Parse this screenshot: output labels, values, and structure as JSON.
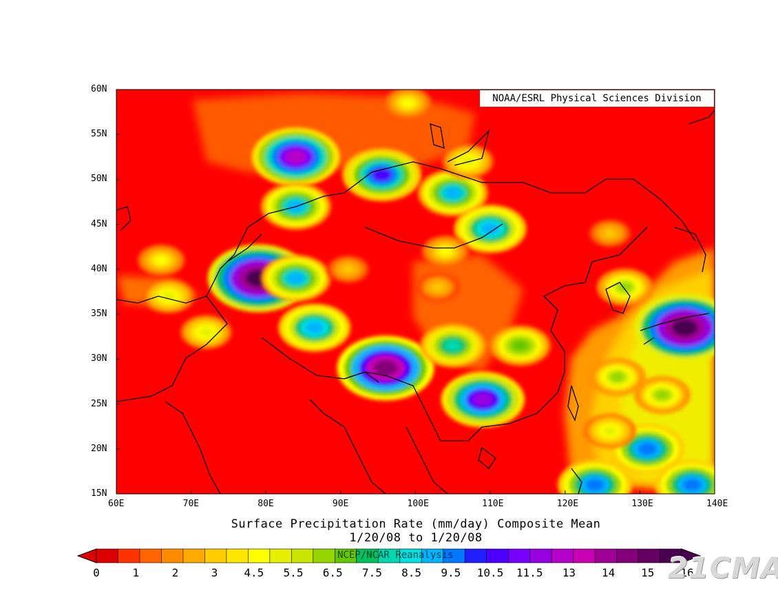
{
  "map": {
    "credit": "NOAA/ESRL Physical Sciences Division",
    "title_line1": "Surface Precipitation Rate (mm/day) Composite Mean",
    "title_line2": "1/20/08  to 1/20/08",
    "source_note": "NCEP/NCAR Reanalysis",
    "watermark": "21CMA",
    "lon_labels": [
      "60E",
      "70E",
      "80E",
      "90E",
      "100E",
      "110E",
      "120E",
      "130E",
      "140E"
    ],
    "lat_labels": [
      "60N",
      "55N",
      "50N",
      "45N",
      "40N",
      "35N",
      "30N",
      "25N",
      "20N",
      "15N"
    ],
    "lon_range": [
      60,
      140
    ],
    "lat_range": [
      15,
      60
    ],
    "background_color": "#ff0000",
    "colorbar": {
      "labels": [
        "0",
        "1",
        "2",
        "3",
        "4.5",
        "5.5",
        "6.5",
        "7.5",
        "8.5",
        "9.5",
        "10.5",
        "11.5",
        "13",
        "14",
        "15",
        "16"
      ],
      "colors": [
        "#dd0000",
        "#ff3300",
        "#ff6600",
        "#ff8c00",
        "#ffaa00",
        "#ffcc00",
        "#ffe600",
        "#ffff00",
        "#e6f000",
        "#c8e600",
        "#96d600",
        "#64c800",
        "#00c060",
        "#00d8b0",
        "#00e0e0",
        "#00b4ff",
        "#0078ff",
        "#1e1eff",
        "#4c00ff",
        "#7800ff",
        "#9600e0",
        "#b400c8",
        "#c800b4",
        "#a00096",
        "#820078",
        "#640064",
        "#4a0050"
      ]
    },
    "precip_blobs": [
      {
        "lon": 84,
        "lat": 52.5,
        "value": 13
      },
      {
        "lon": 95.5,
        "lat": 50.5,
        "value": 11
      },
      {
        "lon": 105,
        "lat": 48.5,
        "value": 9
      },
      {
        "lon": 84,
        "lat": 47,
        "value": 9
      },
      {
        "lon": 110,
        "lat": 44.5,
        "value": 9.5
      },
      {
        "lon": 79,
        "lat": 39,
        "value": 16
      },
      {
        "lon": 84,
        "lat": 39,
        "value": 9
      },
      {
        "lon": 86.5,
        "lat": 33.5,
        "value": 9.5
      },
      {
        "lon": 96,
        "lat": 29,
        "value": 15
      },
      {
        "lon": 105,
        "lat": 31.5,
        "value": 8
      },
      {
        "lon": 114,
        "lat": 31.5,
        "value": 7
      },
      {
        "lon": 109,
        "lat": 25.5,
        "value": 12
      },
      {
        "lon": 136,
        "lat": 33.5,
        "value": 16
      },
      {
        "lon": 131,
        "lat": 20,
        "value": 10
      },
      {
        "lon": 137,
        "lat": 16,
        "value": 10
      },
      {
        "lon": 124,
        "lat": 16,
        "value": 10
      },
      {
        "lon": 99,
        "lat": 58.5,
        "value": 4
      },
      {
        "lon": 66,
        "lat": 41,
        "value": 4
      },
      {
        "lon": 67,
        "lat": 37,
        "value": 5
      },
      {
        "lon": 72,
        "lat": 33,
        "value": 5
      },
      {
        "lon": 91,
        "lat": 40,
        "value": 3
      },
      {
        "lon": 103,
        "lat": 38,
        "value": 3
      },
      {
        "lon": 104,
        "lat": 42,
        "value": 4
      },
      {
        "lon": 107,
        "lat": 52,
        "value": 5
      },
      {
        "lon": 126,
        "lat": 44,
        "value": 3
      },
      {
        "lon": 128,
        "lat": 38,
        "value": 6
      },
      {
        "lon": 127,
        "lat": 28,
        "value": 6
      },
      {
        "lon": 133,
        "lat": 26,
        "value": 6
      },
      {
        "lon": 126,
        "lat": 22,
        "value": 5
      }
    ]
  }
}
